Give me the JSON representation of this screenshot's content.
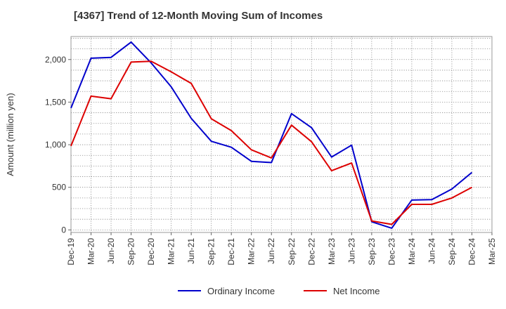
{
  "chart_data": {
    "type": "line",
    "title": "[4367]  Trend of 12-Month Moving Sum of Incomes",
    "xlabel": "",
    "ylabel": "Amount (million yen)",
    "x": [
      "Dec-19",
      "Mar-20",
      "Jun-20",
      "Sep-20",
      "Dec-20",
      "Mar-21",
      "Jun-21",
      "Sep-21",
      "Dec-21",
      "Mar-22",
      "Jun-22",
      "Sep-22",
      "Dec-22",
      "Mar-23",
      "Jun-23",
      "Sep-23",
      "Dec-23",
      "Mar-24",
      "Jun-24",
      "Sep-24",
      "Dec-24",
      "Mar-25"
    ],
    "yticks": [
      0,
      500,
      1000,
      1500,
      2000
    ],
    "ytick_labels": [
      "0",
      "500",
      "1,000",
      "1,500",
      "2,000"
    ],
    "ylim": [
      -30,
      2270
    ],
    "grid": true,
    "legend_position": "bottom",
    "series": [
      {
        "name": "Ordinary Income",
        "color": "#0000cc",
        "values": [
          1430,
          2015,
          2025,
          2205,
          1960,
          1680,
          1310,
          1040,
          970,
          805,
          790,
          1365,
          1200,
          855,
          995,
          95,
          20,
          350,
          355,
          480,
          675,
          null
        ]
      },
      {
        "name": "Net Income",
        "color": "#dd0000",
        "values": [
          985,
          1570,
          1540,
          1970,
          1980,
          1855,
          1720,
          1305,
          1165,
          940,
          845,
          1230,
          1035,
          695,
          785,
          105,
          65,
          300,
          300,
          375,
          500,
          null
        ]
      }
    ]
  }
}
